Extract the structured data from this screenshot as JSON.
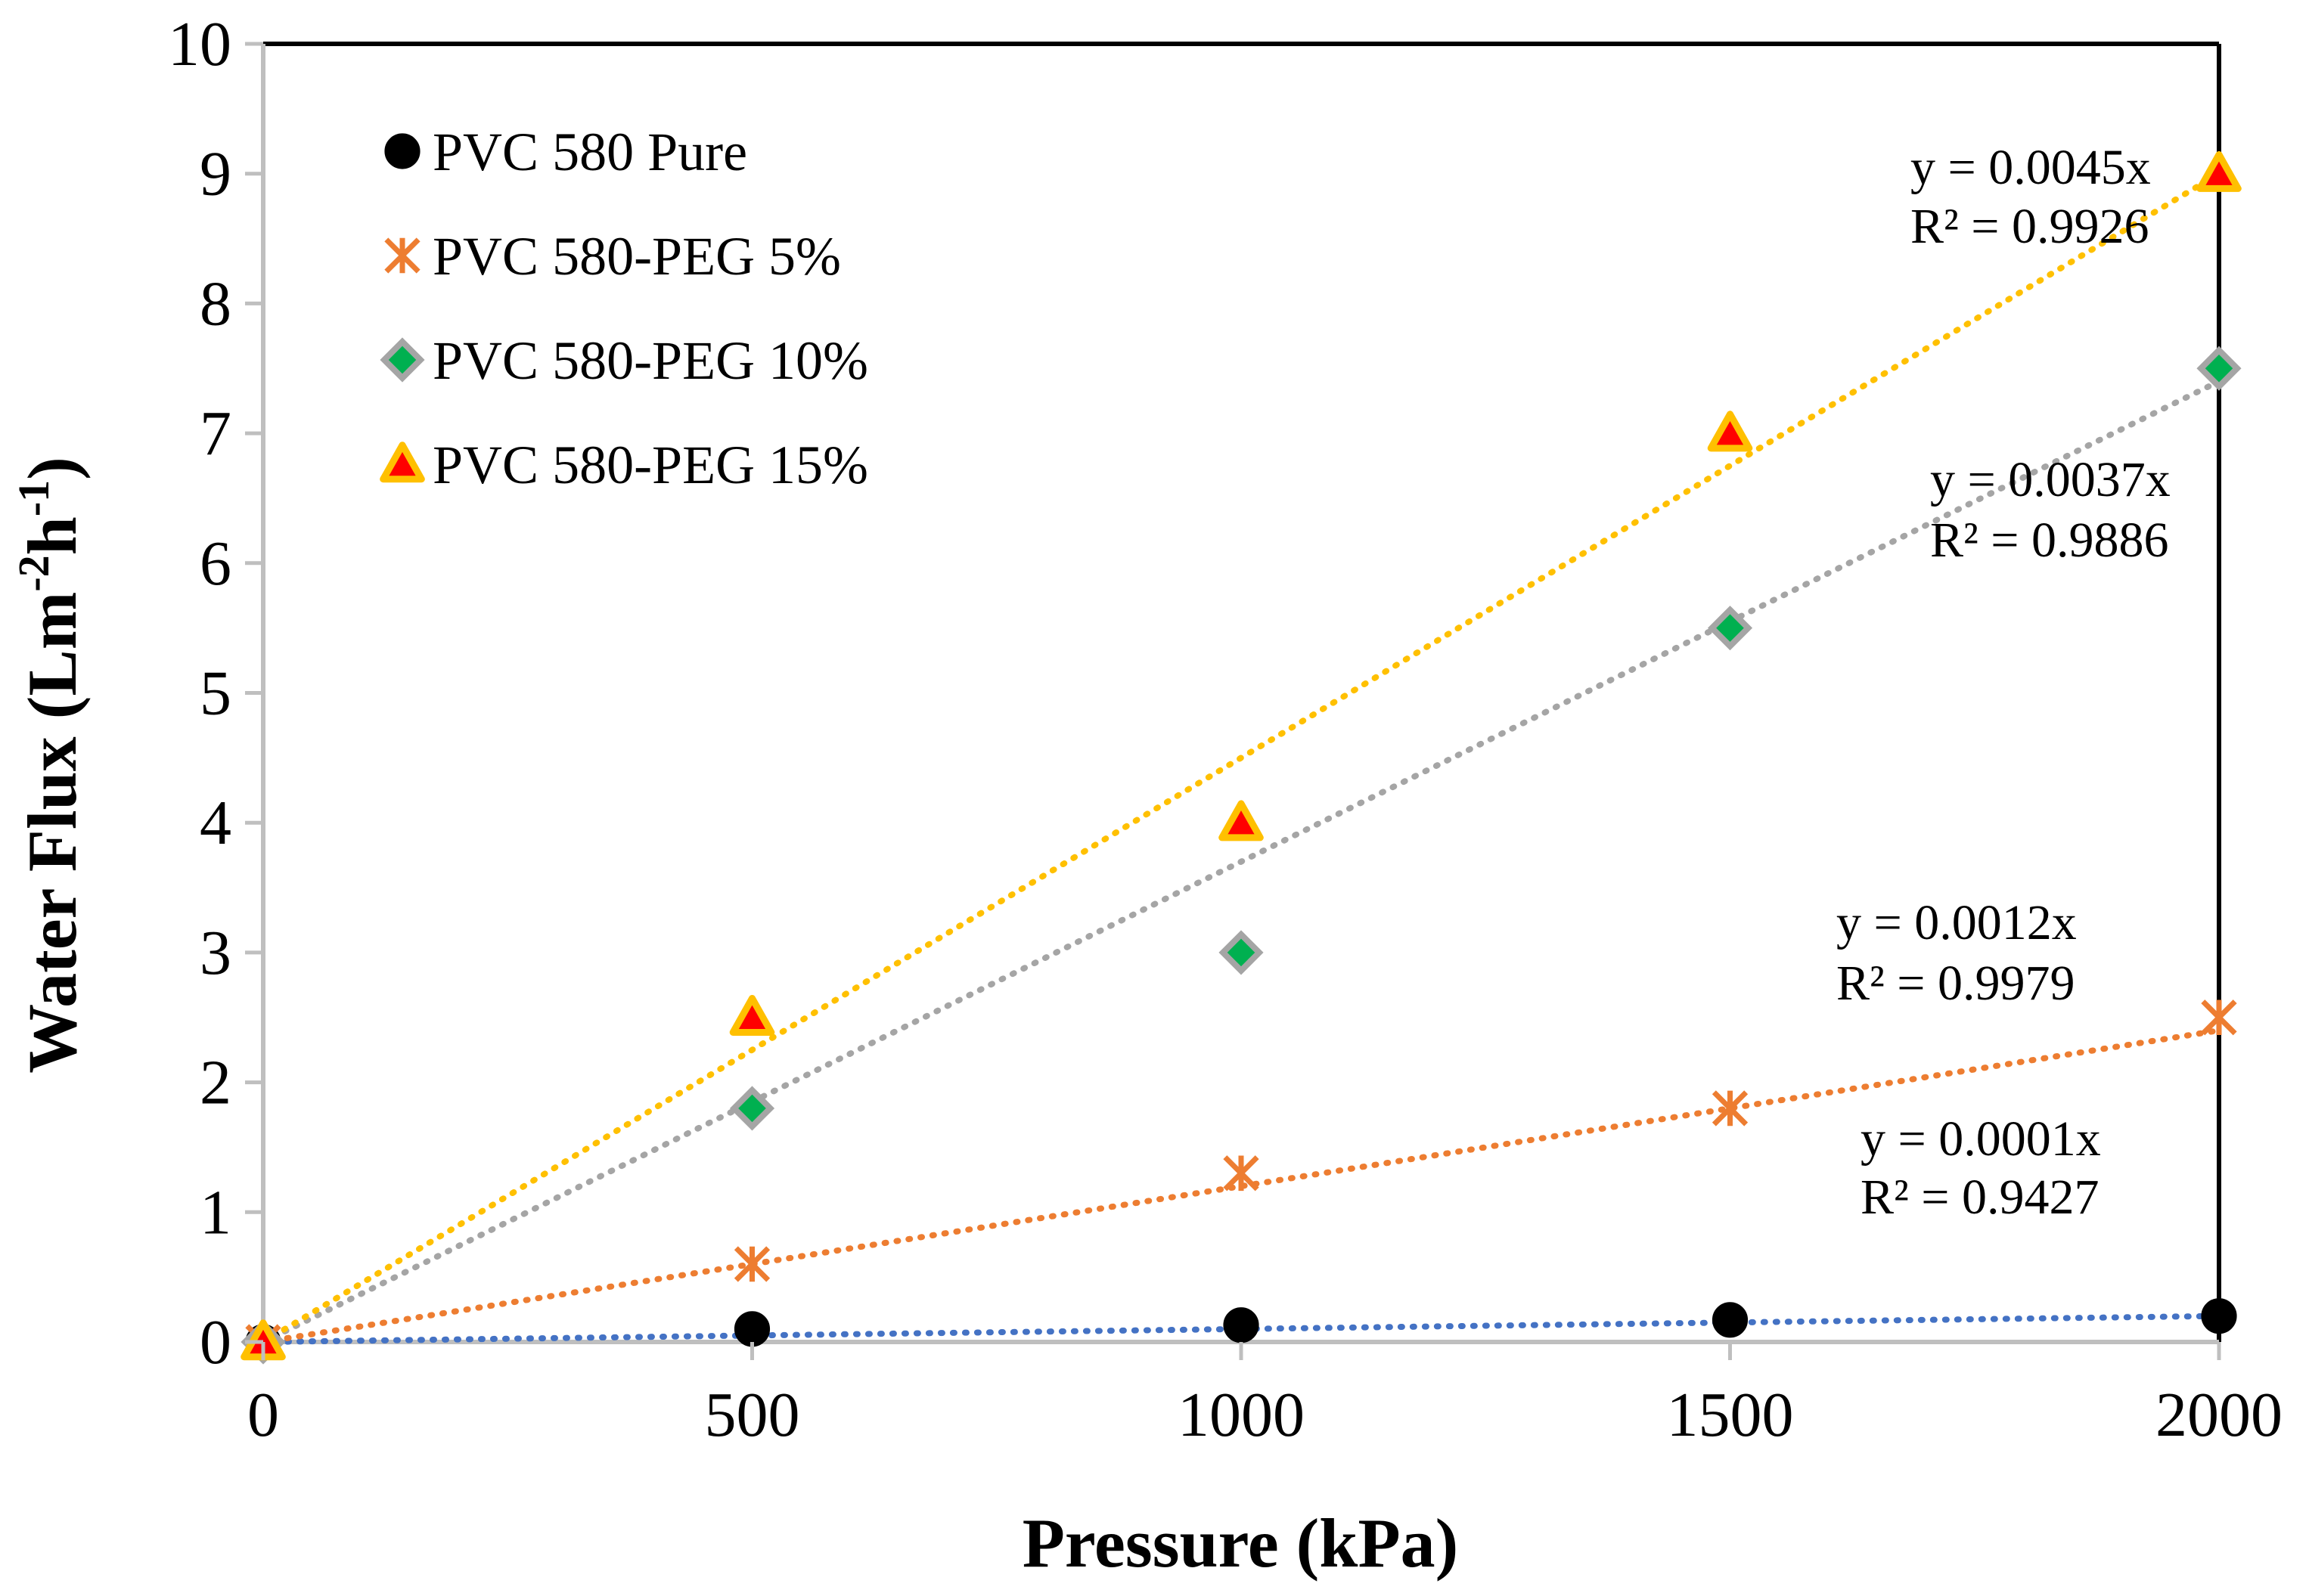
{
  "chart_data": {
    "type": "scatter",
    "title": "",
    "xlabel": "Pressure (kPa)",
    "ylabel": {
      "base": "Water Flux (Lm",
      "sup1": "-2",
      "mid": "h",
      "sup2": "-1",
      "end": ")"
    },
    "xlim": [
      0,
      2000
    ],
    "ylim": [
      0,
      10
    ],
    "xticks": [
      "0",
      "500",
      "1000",
      "1500",
      "2000"
    ],
    "yticks": [
      "0",
      "1",
      "2",
      "3",
      "4",
      "5",
      "6",
      "7",
      "8",
      "9",
      "10"
    ],
    "grid": false,
    "legend_position": "top-left",
    "x": [
      0,
      500,
      1000,
      1500,
      2000
    ],
    "series": [
      {
        "name": "PVC 580 Pure",
        "marker": "circle",
        "fill": "#000000",
        "edge": "#000000",
        "trendline_color": "#4472C4",
        "slope": 0.0001,
        "values": [
          0,
          0.1,
          0.13,
          0.17,
          0.2
        ],
        "equation": "y = 0.0001x",
        "r2": "R² = 0.9427"
      },
      {
        "name": "PVC 580-PEG 5%",
        "marker": "asterisk",
        "fill": "#ED7D31",
        "edge": "#ED7D31",
        "trendline_color": "#ED7D31",
        "slope": 0.0012,
        "values": [
          0,
          0.6,
          1.3,
          1.8,
          2.5
        ],
        "equation": "y = 0.0012x",
        "r2": "R² = 0.9979"
      },
      {
        "name": "PVC 580-PEG 10%",
        "marker": "diamond",
        "fill": "#00B050",
        "edge": "#A5A5A5",
        "trendline_color": "#A5A5A5",
        "slope": 0.0037,
        "values": [
          0,
          1.8,
          3.0,
          5.5,
          7.5
        ],
        "equation": "y = 0.0037x",
        "r2": "R² = 0.9886"
      },
      {
        "name": "PVC 580-PEG 15%",
        "marker": "triangle",
        "fill": "#FF0000",
        "edge": "#FFC000",
        "trendline_color": "#FFC000",
        "slope": 0.0045,
        "values": [
          0,
          2.5,
          4.0,
          7.0,
          9.0
        ],
        "equation": "y = 0.0045x",
        "r2": "R² = 0.9926"
      }
    ]
  }
}
